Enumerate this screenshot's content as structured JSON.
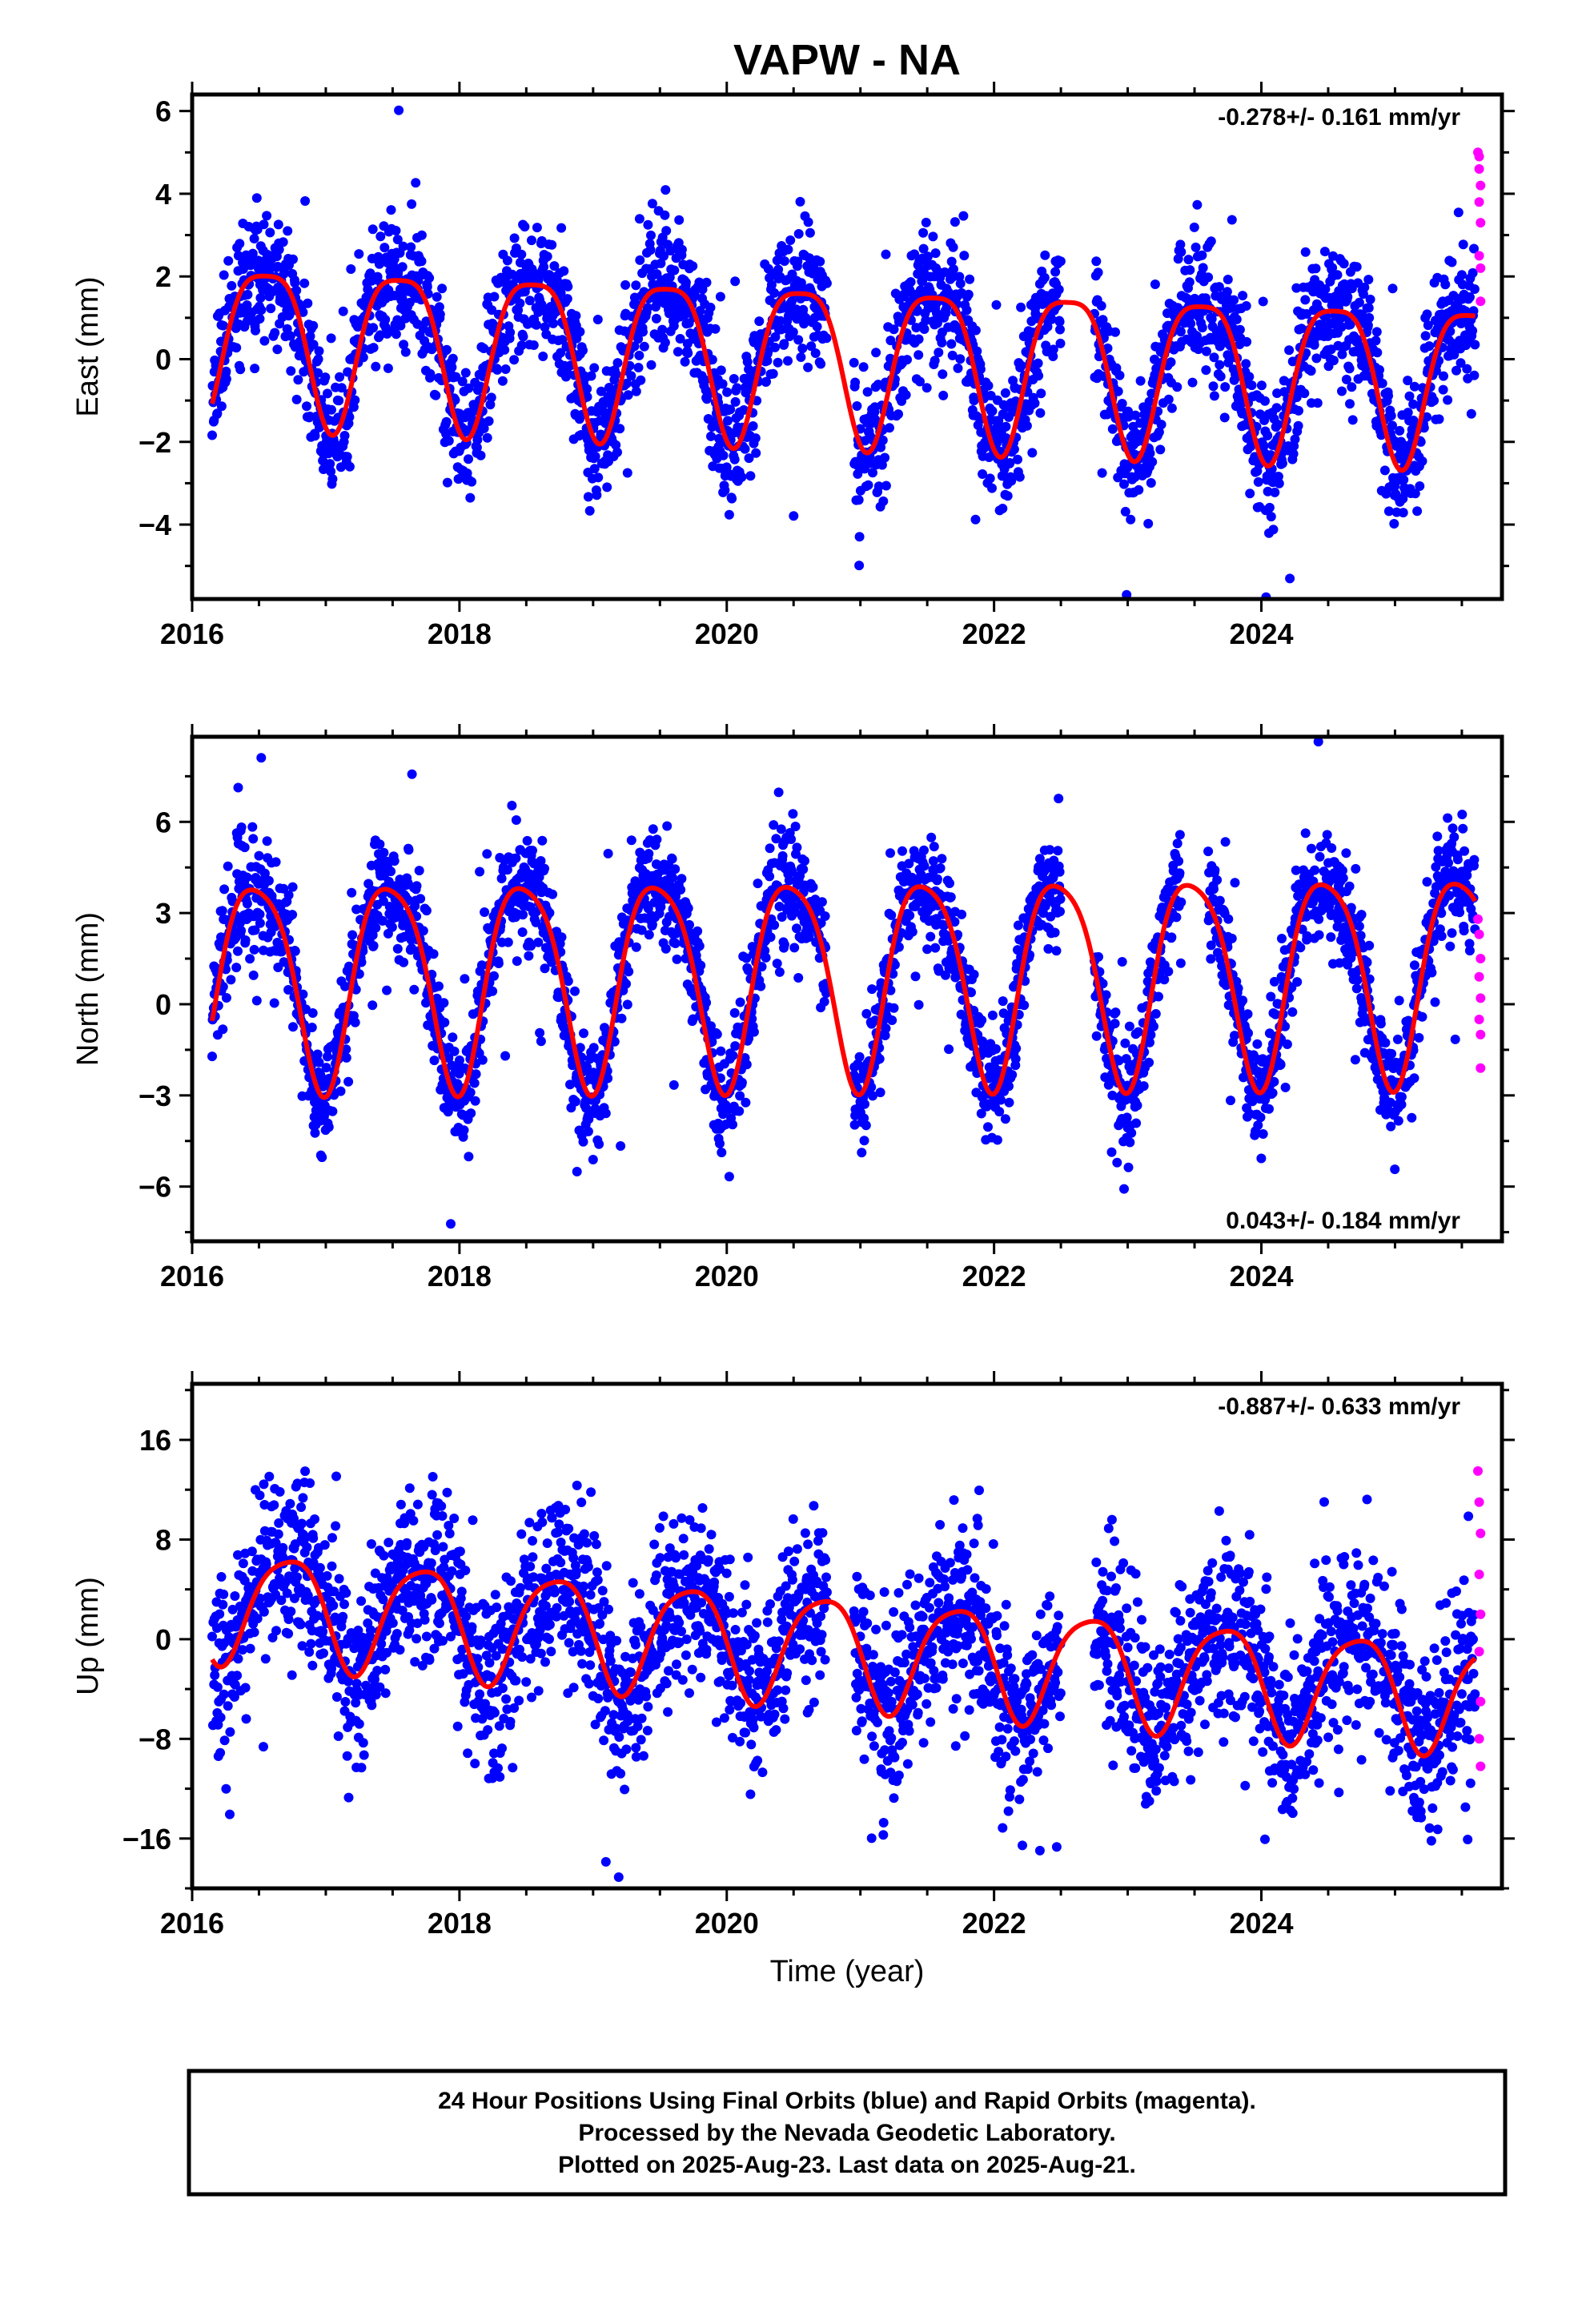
{
  "title": "VAPW - NA",
  "colors": {
    "final_orbits": "#0000ff",
    "rapid_orbits": "#ff00ff",
    "model_curve": "#ff0000",
    "frame": "#000000"
  },
  "chart_data": [
    {
      "type": "scatter",
      "component": "east",
      "ylabel": "East (mm)",
      "xlabel": "",
      "xlim": [
        2016.0,
        2025.8
      ],
      "ylim": [
        -5.8,
        6.4
      ],
      "xticks": [
        2016,
        2018,
        2020,
        2022,
        2024
      ],
      "xtick_labels": [
        "2016",
        "2018",
        "2020",
        "2022",
        "2024"
      ],
      "yticks": [
        -4,
        -2,
        0,
        2,
        4,
        6
      ],
      "ytick_labels": [
        "−4",
        "−2",
        "0",
        "2",
        "4",
        "6"
      ],
      "rate_text": "-0.278+/- 0.161 mm/yr",
      "rate_position": "top-right",
      "grid": false,
      "model": {
        "mean": [
          [
            2016.15,
            0.6
          ],
          [
            2025.6,
            -0.4
          ]
        ],
        "amp_annual": 1.9,
        "phase_annual": 2016.55,
        "amp_semiannual": 0.45,
        "phase_semiannual": 2016.3
      },
      "scatter": {
        "noise": 0.8,
        "spike_prob": 0.02,
        "spike_amp": 2.4,
        "seed": 11
      },
      "rapid_points": [
        [
          2025.62,
          5.0
        ],
        [
          2025.63,
          4.6
        ],
        [
          2025.64,
          4.2
        ],
        [
          2025.63,
          3.8
        ],
        [
          2025.64,
          3.3
        ],
        [
          2025.63,
          2.5
        ],
        [
          2025.64,
          2.2
        ],
        [
          2025.64,
          1.4
        ],
        [
          2025.63,
          4.9
        ]
      ],
      "gaps": [
        [
          2020.75,
          2020.95
        ],
        [
          2022.5,
          2022.75
        ]
      ]
    },
    {
      "type": "scatter",
      "component": "north",
      "ylabel": "North (mm)",
      "xlabel": "",
      "xlim": [
        2016.0,
        2025.8
      ],
      "ylim": [
        -7.8,
        8.8
      ],
      "xticks": [
        2016,
        2018,
        2020,
        2022,
        2024
      ],
      "xtick_labels": [
        "2016",
        "2018",
        "2020",
        "2022",
        "2024"
      ],
      "yticks": [
        -6,
        -3,
        0,
        3,
        6
      ],
      "ytick_labels": [
        "−6",
        "−3",
        "0",
        "3",
        "6"
      ],
      "rate_text": "0.043+/- 0.184 mm/yr",
      "rate_position": "bottom-right",
      "grid": false,
      "model": {
        "mean": [
          [
            2016.15,
            0.9
          ],
          [
            2025.6,
            1.1
          ]
        ],
        "amp_annual": 3.4,
        "phase_annual": 2016.48,
        "amp_semiannual": 0.6,
        "phase_semiannual": 2016.25
      },
      "scatter": {
        "noise": 0.9,
        "spike_prob": 0.015,
        "spike_amp": 3.0,
        "seed": 23
      },
      "rapid_points": [
        [
          2025.62,
          2.8
        ],
        [
          2025.63,
          2.3
        ],
        [
          2025.64,
          1.5
        ],
        [
          2025.63,
          0.9
        ],
        [
          2025.64,
          0.2
        ],
        [
          2025.63,
          -0.5
        ],
        [
          2025.64,
          -1.0
        ],
        [
          2025.64,
          -2.1
        ]
      ],
      "gaps": [
        [
          2020.75,
          2020.95
        ],
        [
          2022.5,
          2022.75
        ],
        [
          2023.4,
          2023.6
        ]
      ]
    },
    {
      "type": "scatter",
      "component": "up",
      "ylabel": "Up (mm)",
      "xlabel": "Time (year)",
      "xlim": [
        2016.0,
        2025.8
      ],
      "ylim": [
        -20.0,
        20.5
      ],
      "xticks": [
        2016,
        2018,
        2020,
        2022,
        2024
      ],
      "xtick_labels": [
        "2016",
        "2018",
        "2020",
        "2022",
        "2024"
      ],
      "yticks": [
        -16,
        -8,
        0,
        8,
        16
      ],
      "ytick_labels": [
        "−16",
        "−8",
        "0",
        "8",
        "16"
      ],
      "rate_text": "-0.887+/- 0.633 mm/yr",
      "rate_position": "top-right",
      "grid": false,
      "model": {
        "mean": [
          [
            2016.15,
            3.0
          ],
          [
            2025.6,
            -4.5
          ]
        ],
        "amp_annual": 4.4,
        "phase_annual": 2016.72,
        "amp_semiannual": 0.8,
        "phase_semiannual": 2016.45
      },
      "scatter": {
        "noise": 3.4,
        "spike_prob": 0.02,
        "spike_amp": 7.0,
        "seed": 37
      },
      "rapid_points": [
        [
          2025.62,
          13.5
        ],
        [
          2025.63,
          11.0
        ],
        [
          2025.64,
          8.5
        ],
        [
          2025.63,
          5.2
        ],
        [
          2025.64,
          2.0
        ],
        [
          2025.63,
          -1.0
        ],
        [
          2025.64,
          -5.0
        ],
        [
          2025.63,
          -8.0
        ],
        [
          2025.64,
          -10.2
        ]
      ],
      "gaps": [
        [
          2020.75,
          2020.95
        ],
        [
          2022.5,
          2022.75
        ]
      ]
    }
  ],
  "footer": {
    "line1": "24 Hour Positions Using Final Orbits (blue) and Rapid Orbits (magenta).",
    "line2": "Processed by the Nevada Geodetic Laboratory.",
    "line3": "Plotted on 2025-Aug-23. Last data on 2025-Aug-21."
  }
}
